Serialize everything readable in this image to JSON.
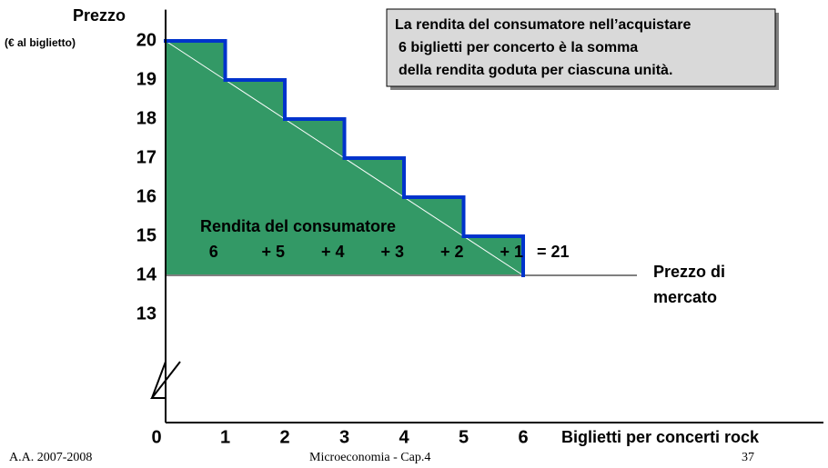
{
  "chart_data": {
    "type": "step",
    "title_lines": [
      "La rendita del consumatore nell’acquistare",
      "6 biglietti per concerto è la somma",
      "della rendita  goduta per ciascuna unità."
    ],
    "y_label": "Prezzo",
    "y_label_sub": "(€ al biglietto)",
    "x_label": "Biglietti per concerti rock",
    "x": [
      1,
      2,
      3,
      4,
      5,
      6
    ],
    "values": [
      20,
      19,
      18,
      17,
      16,
      15
    ],
    "market_price": 14,
    "market_price_label": [
      "Prezzo di",
      "mercato"
    ],
    "area_label": "Rendita del consumatore",
    "surplus_terms": [
      6,
      5,
      4,
      3,
      2,
      1
    ],
    "surplus_labels": [
      "6",
      "+ 5",
      "+ 4",
      "+ 3",
      "+ 2",
      "+ 1"
    ],
    "total": 21,
    "total_label": "= 21",
    "xlim": [
      0,
      6
    ],
    "xticks": [
      0,
      1,
      2,
      3,
      4,
      5,
      6
    ],
    "ylim": [
      12,
      20.8
    ],
    "yticks": [
      13,
      14,
      15,
      16,
      17,
      18,
      19,
      20
    ],
    "area_color": "#339966",
    "step_color": "#0033cc",
    "price_color": "#808080",
    "footer": {
      "left": "A.A. 2007-2008",
      "center": "Microeconomia - Cap.4",
      "right": "37"
    }
  }
}
